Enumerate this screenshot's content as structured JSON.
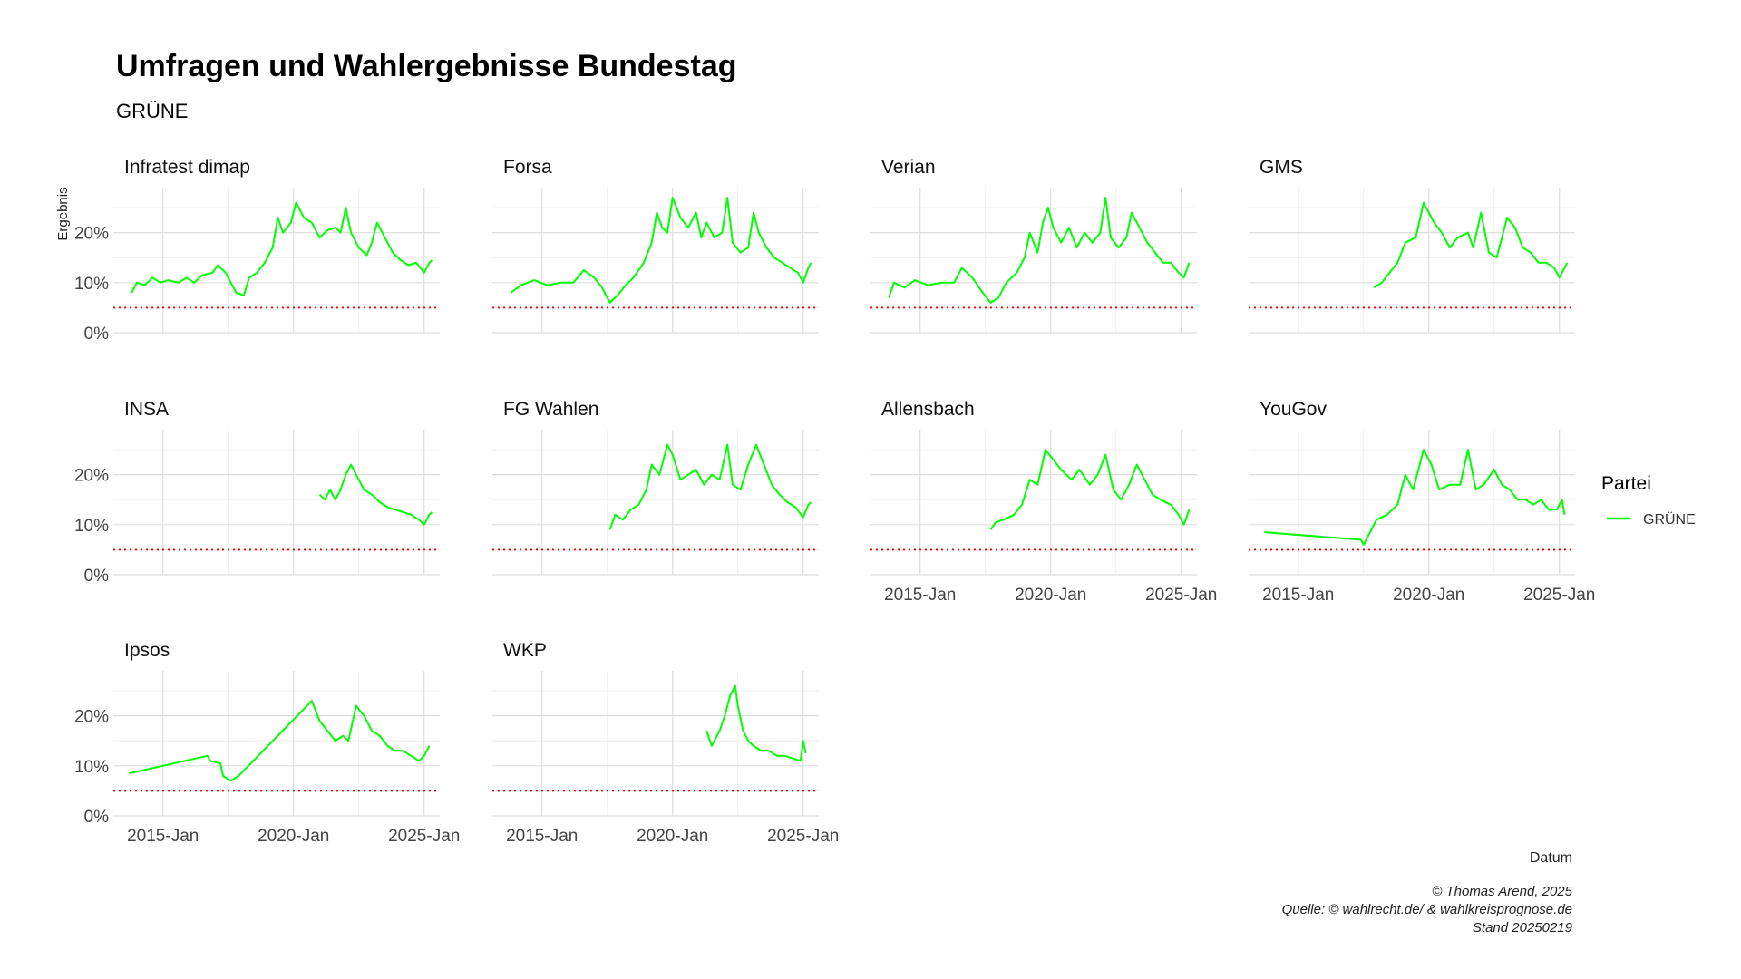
{
  "header": {
    "title": "Umfragen und Wahlergebnisse Bundestag",
    "subtitle": "GRÜNE"
  },
  "legend": {
    "title": "Partei",
    "items": [
      {
        "label": "GRÜNE",
        "color": "#00ff00"
      }
    ]
  },
  "caption": {
    "line1": "© Thomas Arend, 2025",
    "line2": "Quelle: © wahlrecht.de/ & wahlkreisprognose.de",
    "line3": "Stand 20250219"
  },
  "chart_data": {
    "type": "line",
    "xlabel": "Datum",
    "ylabel": "Ergebnis",
    "x_ticks": [
      "2015-Jan",
      "2020-Jan",
      "2025-Jan"
    ],
    "x_range": [
      2013.1,
      2025.6
    ],
    "y_ticks": [
      "0%",
      "10%",
      "20%"
    ],
    "ylim": [
      0,
      29
    ],
    "threshold": {
      "value": 5,
      "color": "#ff0000",
      "style": "dotted"
    },
    "series_color": "#00ff00",
    "grid": true,
    "legend_position": "right",
    "panels": [
      {
        "name": "Infratest dimap",
        "points": [
          [
            2013.8,
            8
          ],
          [
            2014.0,
            10
          ],
          [
            2014.3,
            9.5
          ],
          [
            2014.6,
            11
          ],
          [
            2014.9,
            10
          ],
          [
            2015.2,
            10.5
          ],
          [
            2015.6,
            10
          ],
          [
            2015.9,
            11
          ],
          [
            2016.2,
            10
          ],
          [
            2016.5,
            11.5
          ],
          [
            2016.9,
            12
          ],
          [
            2017.1,
            13.5
          ],
          [
            2017.4,
            12
          ],
          [
            2017.6,
            10
          ],
          [
            2017.8,
            8
          ],
          [
            2018.1,
            7.5
          ],
          [
            2018.3,
            11
          ],
          [
            2018.6,
            12
          ],
          [
            2018.9,
            14
          ],
          [
            2019.2,
            17
          ],
          [
            2019.4,
            23
          ],
          [
            2019.6,
            20
          ],
          [
            2019.9,
            22
          ],
          [
            2020.1,
            26
          ],
          [
            2020.4,
            23
          ],
          [
            2020.7,
            22
          ],
          [
            2021.0,
            19
          ],
          [
            2021.3,
            20.5
          ],
          [
            2021.6,
            21
          ],
          [
            2021.8,
            20
          ],
          [
            2022.0,
            25
          ],
          [
            2022.2,
            20
          ],
          [
            2022.5,
            17
          ],
          [
            2022.8,
            15.5
          ],
          [
            2023.0,
            18
          ],
          [
            2023.2,
            22
          ],
          [
            2023.5,
            19
          ],
          [
            2023.8,
            16
          ],
          [
            2024.1,
            14.5
          ],
          [
            2024.4,
            13.5
          ],
          [
            2024.7,
            14
          ],
          [
            2025.0,
            12
          ],
          [
            2025.2,
            14
          ],
          [
            2025.3,
            14.5
          ]
        ]
      },
      {
        "name": "Forsa",
        "points": [
          [
            2013.8,
            8
          ],
          [
            2014.2,
            9.5
          ],
          [
            2014.7,
            10.5
          ],
          [
            2015.2,
            9.5
          ],
          [
            2015.7,
            10
          ],
          [
            2016.2,
            10
          ],
          [
            2016.6,
            12.5
          ],
          [
            2017.0,
            11
          ],
          [
            2017.3,
            9
          ],
          [
            2017.6,
            6
          ],
          [
            2017.9,
            7.5
          ],
          [
            2018.2,
            9.5
          ],
          [
            2018.5,
            11
          ],
          [
            2018.9,
            14
          ],
          [
            2019.2,
            18
          ],
          [
            2019.4,
            24
          ],
          [
            2019.6,
            21
          ],
          [
            2019.8,
            20
          ],
          [
            2020.0,
            27
          ],
          [
            2020.3,
            23
          ],
          [
            2020.6,
            21
          ],
          [
            2020.9,
            24
          ],
          [
            2021.1,
            19
          ],
          [
            2021.3,
            22
          ],
          [
            2021.6,
            19
          ],
          [
            2021.9,
            20
          ],
          [
            2022.1,
            27
          ],
          [
            2022.3,
            18
          ],
          [
            2022.6,
            16
          ],
          [
            2022.9,
            17
          ],
          [
            2023.1,
            24
          ],
          [
            2023.3,
            20
          ],
          [
            2023.6,
            17
          ],
          [
            2023.9,
            15
          ],
          [
            2024.2,
            14
          ],
          [
            2024.5,
            13
          ],
          [
            2024.8,
            12
          ],
          [
            2025.0,
            10
          ],
          [
            2025.2,
            13
          ],
          [
            2025.3,
            14
          ]
        ]
      },
      {
        "name": "Verian",
        "points": [
          [
            2013.8,
            7
          ],
          [
            2014.0,
            10
          ],
          [
            2014.4,
            9
          ],
          [
            2014.8,
            10.5
          ],
          [
            2015.3,
            9.5
          ],
          [
            2015.8,
            10
          ],
          [
            2016.3,
            10
          ],
          [
            2016.6,
            13
          ],
          [
            2017.0,
            11
          ],
          [
            2017.4,
            8
          ],
          [
            2017.7,
            6
          ],
          [
            2018.0,
            7
          ],
          [
            2018.3,
            10
          ],
          [
            2018.7,
            12
          ],
          [
            2019.0,
            15
          ],
          [
            2019.2,
            20
          ],
          [
            2019.5,
            16
          ],
          [
            2019.7,
            22
          ],
          [
            2019.9,
            25
          ],
          [
            2020.1,
            21
          ],
          [
            2020.4,
            18
          ],
          [
            2020.7,
            21
          ],
          [
            2021.0,
            17
          ],
          [
            2021.3,
            20
          ],
          [
            2021.6,
            18
          ],
          [
            2021.9,
            20
          ],
          [
            2022.1,
            27
          ],
          [
            2022.3,
            19
          ],
          [
            2022.6,
            17
          ],
          [
            2022.9,
            19
          ],
          [
            2023.1,
            24
          ],
          [
            2023.4,
            21
          ],
          [
            2023.7,
            18
          ],
          [
            2024.0,
            16
          ],
          [
            2024.3,
            14
          ],
          [
            2024.6,
            14
          ],
          [
            2024.9,
            12
          ],
          [
            2025.1,
            11
          ],
          [
            2025.3,
            14
          ]
        ]
      },
      {
        "name": "GMS",
        "points": [
          [
            2017.9,
            9
          ],
          [
            2018.2,
            10
          ],
          [
            2018.5,
            12
          ],
          [
            2018.8,
            14
          ],
          [
            2019.1,
            18
          ],
          [
            2019.5,
            19
          ],
          [
            2019.8,
            26
          ],
          [
            2020.2,
            22
          ],
          [
            2020.5,
            20
          ],
          [
            2020.8,
            17
          ],
          [
            2021.1,
            19
          ],
          [
            2021.5,
            20
          ],
          [
            2021.7,
            17
          ],
          [
            2022.0,
            24
          ],
          [
            2022.3,
            16
          ],
          [
            2022.6,
            15
          ],
          [
            2023.0,
            23
          ],
          [
            2023.3,
            21
          ],
          [
            2023.6,
            17
          ],
          [
            2023.9,
            16
          ],
          [
            2024.2,
            14
          ],
          [
            2024.5,
            14
          ],
          [
            2024.8,
            13
          ],
          [
            2025.0,
            11
          ],
          [
            2025.3,
            14
          ]
        ]
      },
      {
        "name": "INSA",
        "points": [
          [
            2021.0,
            16
          ],
          [
            2021.2,
            15
          ],
          [
            2021.4,
            17
          ],
          [
            2021.6,
            15
          ],
          [
            2021.8,
            17
          ],
          [
            2022.0,
            20
          ],
          [
            2022.2,
            22
          ],
          [
            2022.4,
            20
          ],
          [
            2022.7,
            17
          ],
          [
            2023.0,
            16
          ],
          [
            2023.3,
            14.5
          ],
          [
            2023.6,
            13.5
          ],
          [
            2023.9,
            13
          ],
          [
            2024.2,
            12.5
          ],
          [
            2024.5,
            12
          ],
          [
            2024.8,
            11
          ],
          [
            2025.0,
            10
          ],
          [
            2025.2,
            12
          ],
          [
            2025.3,
            12.5
          ]
        ]
      },
      {
        "name": "FG Wahlen",
        "points": [
          [
            2017.6,
            9
          ],
          [
            2017.8,
            12
          ],
          [
            2018.1,
            11
          ],
          [
            2018.4,
            13
          ],
          [
            2018.7,
            14
          ],
          [
            2019.0,
            17
          ],
          [
            2019.2,
            22
          ],
          [
            2019.5,
            20
          ],
          [
            2019.8,
            26
          ],
          [
            2020.0,
            24
          ],
          [
            2020.3,
            19
          ],
          [
            2020.6,
            20
          ],
          [
            2020.9,
            21
          ],
          [
            2021.2,
            18
          ],
          [
            2021.5,
            20
          ],
          [
            2021.8,
            19
          ],
          [
            2022.1,
            26
          ],
          [
            2022.3,
            18
          ],
          [
            2022.6,
            17
          ],
          [
            2022.9,
            22
          ],
          [
            2023.2,
            26
          ],
          [
            2023.5,
            22
          ],
          [
            2023.8,
            18
          ],
          [
            2024.1,
            16
          ],
          [
            2024.4,
            14.5
          ],
          [
            2024.7,
            13.5
          ],
          [
            2025.0,
            11.5
          ],
          [
            2025.2,
            14
          ],
          [
            2025.3,
            14.5
          ]
        ]
      },
      {
        "name": "Allensbach",
        "points": [
          [
            2017.7,
            9
          ],
          [
            2017.9,
            10.5
          ],
          [
            2018.2,
            11
          ],
          [
            2018.6,
            12
          ],
          [
            2018.9,
            14
          ],
          [
            2019.2,
            19
          ],
          [
            2019.5,
            18
          ],
          [
            2019.8,
            25
          ],
          [
            2020.1,
            23
          ],
          [
            2020.4,
            21
          ],
          [
            2020.8,
            19
          ],
          [
            2021.1,
            21
          ],
          [
            2021.5,
            18
          ],
          [
            2021.8,
            20
          ],
          [
            2022.1,
            24
          ],
          [
            2022.4,
            17
          ],
          [
            2022.7,
            15
          ],
          [
            2023.0,
            18
          ],
          [
            2023.3,
            22
          ],
          [
            2023.6,
            19
          ],
          [
            2023.9,
            16
          ],
          [
            2024.2,
            15
          ],
          [
            2024.6,
            14
          ],
          [
            2024.9,
            12
          ],
          [
            2025.1,
            10
          ],
          [
            2025.3,
            13
          ]
        ]
      },
      {
        "name": "YouGov",
        "points": [
          [
            2013.7,
            8.5
          ],
          [
            2017.4,
            7
          ],
          [
            2017.5,
            6
          ],
          [
            2017.7,
            8
          ],
          [
            2018.0,
            11
          ],
          [
            2018.4,
            12
          ],
          [
            2018.8,
            14
          ],
          [
            2019.1,
            20
          ],
          [
            2019.4,
            17
          ],
          [
            2019.8,
            25
          ],
          [
            2020.1,
            22
          ],
          [
            2020.4,
            17
          ],
          [
            2020.8,
            18
          ],
          [
            2021.2,
            18
          ],
          [
            2021.5,
            25
          ],
          [
            2021.8,
            17
          ],
          [
            2022.1,
            18
          ],
          [
            2022.5,
            21
          ],
          [
            2022.8,
            18
          ],
          [
            2023.1,
            17
          ],
          [
            2023.4,
            15
          ],
          [
            2023.7,
            15
          ],
          [
            2024.0,
            14
          ],
          [
            2024.3,
            15
          ],
          [
            2024.6,
            13
          ],
          [
            2024.9,
            13
          ],
          [
            2025.1,
            15
          ],
          [
            2025.2,
            12
          ]
        ]
      },
      {
        "name": "Ipsos",
        "points": [
          [
            2013.7,
            8.5
          ],
          [
            2016.7,
            12
          ],
          [
            2016.8,
            11
          ],
          [
            2017.2,
            10.5
          ],
          [
            2017.3,
            8
          ],
          [
            2017.6,
            7
          ],
          [
            2017.9,
            8
          ],
          [
            2020.7,
            23
          ],
          [
            2021.0,
            19
          ],
          [
            2021.3,
            17
          ],
          [
            2021.6,
            15
          ],
          [
            2021.9,
            16
          ],
          [
            2022.1,
            15
          ],
          [
            2022.4,
            22
          ],
          [
            2022.7,
            20
          ],
          [
            2023.0,
            17
          ],
          [
            2023.3,
            16
          ],
          [
            2023.6,
            14
          ],
          [
            2023.9,
            13
          ],
          [
            2024.2,
            13
          ],
          [
            2024.5,
            12
          ],
          [
            2024.8,
            11
          ],
          [
            2025.0,
            12
          ],
          [
            2025.2,
            14
          ]
        ]
      },
      {
        "name": "WKP",
        "points": [
          [
            2021.3,
            17
          ],
          [
            2021.5,
            14
          ],
          [
            2021.8,
            17
          ],
          [
            2022.0,
            20
          ],
          [
            2022.2,
            24
          ],
          [
            2022.4,
            26
          ],
          [
            2022.5,
            22
          ],
          [
            2022.7,
            17
          ],
          [
            2022.9,
            15
          ],
          [
            2023.1,
            14
          ],
          [
            2023.4,
            13
          ],
          [
            2023.7,
            13
          ],
          [
            2024.0,
            12
          ],
          [
            2024.3,
            12
          ],
          [
            2024.6,
            11.5
          ],
          [
            2024.9,
            11
          ],
          [
            2025.0,
            15
          ],
          [
            2025.1,
            12.5
          ]
        ]
      }
    ]
  }
}
